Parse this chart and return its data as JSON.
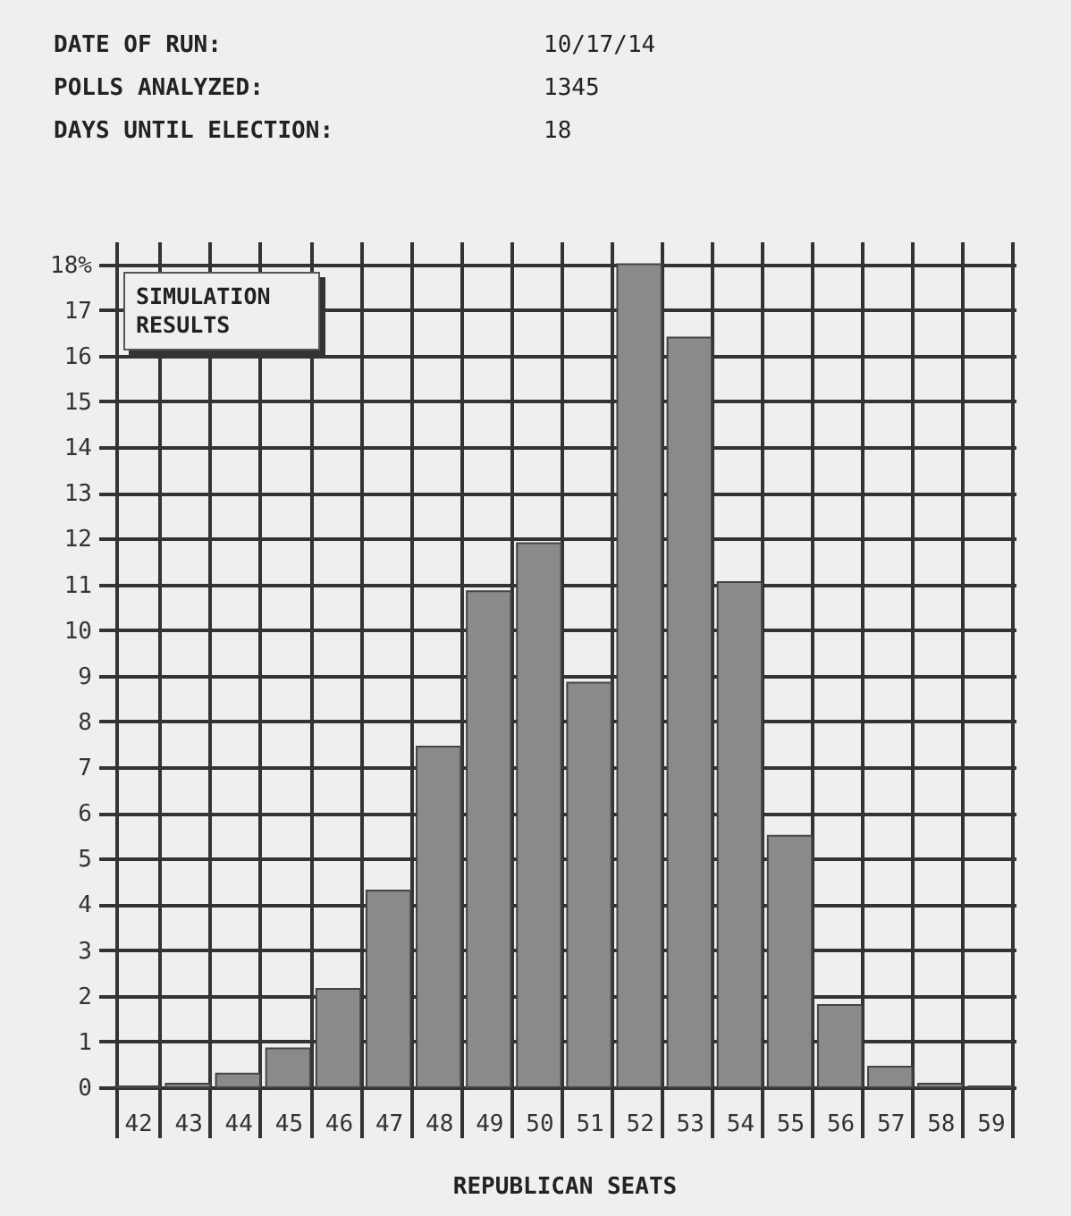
{
  "chart_data": {
    "type": "bar",
    "title": "SIMULATION RESULTS",
    "xlabel": "REPUBLICAN SEATS",
    "annotations": [
      "DATE OF RUN:",
      "10/17/14",
      "POLLS ANALYZED:",
      "1345",
      "DAYS UNTIL ELECTION:",
      "18"
    ],
    "categories": [
      "42",
      "43",
      "44",
      "45",
      "46",
      "47",
      "48",
      "49",
      "50",
      "51",
      "52",
      "53",
      "54",
      "55",
      "56",
      "57",
      "58",
      "59"
    ],
    "values": [
      0.02,
      0.08,
      0.3,
      0.85,
      2.15,
      4.3,
      7.45,
      10.85,
      11.9,
      8.85,
      18.0,
      16.4,
      11.05,
      5.5,
      1.8,
      0.45,
      0.08,
      0.02
    ],
    "color": "#8a8a8a",
    "ylim": [
      0,
      18.5
    ],
    "yticks": [
      0,
      1,
      2,
      3,
      4,
      5,
      6,
      7,
      8,
      9,
      10,
      11,
      12,
      13,
      14,
      15,
      16,
      17,
      {
        "value": 18,
        "label": "18%"
      }
    ],
    "grid": true
  }
}
